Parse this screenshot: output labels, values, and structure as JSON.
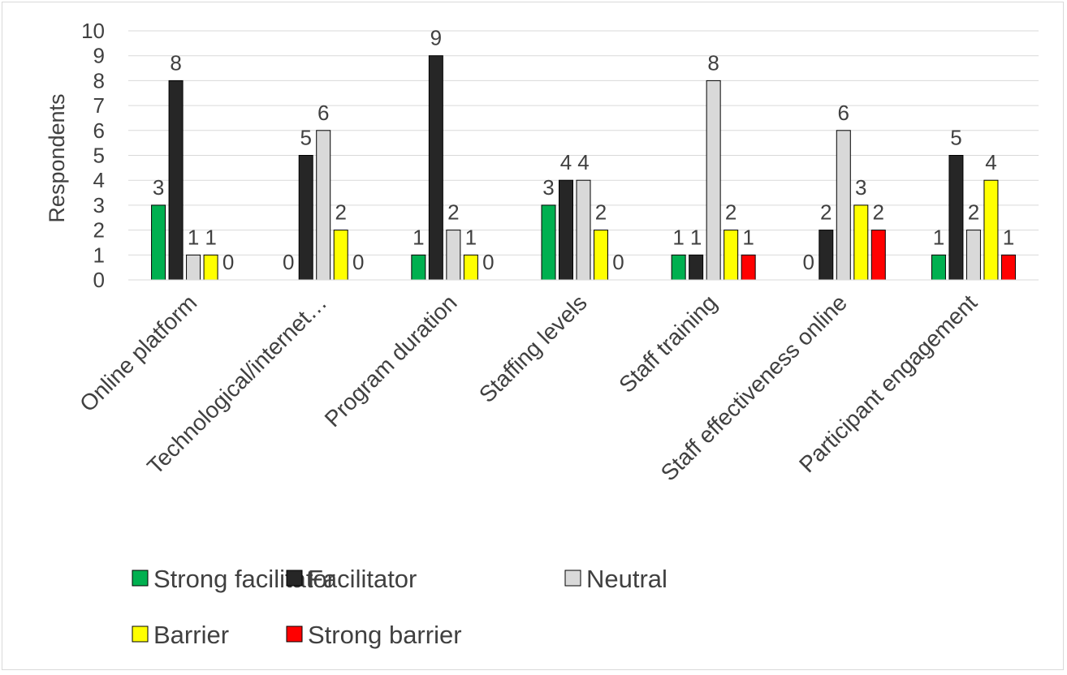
{
  "chart_data": {
    "type": "bar",
    "title": "",
    "xlabel": "",
    "ylabel": "Respondents",
    "ylim": [
      0,
      10
    ],
    "yticks": [
      "0",
      "1",
      "2",
      "3",
      "4",
      "5",
      "6",
      "7",
      "8",
      "9",
      "10"
    ],
    "grid": true,
    "legend_position": "bottom",
    "categories": [
      "Online platform",
      "Technological/internet…",
      "Program duration",
      "Staffing levels",
      "Staff training",
      "Staff effectiveness online",
      "Participant engagement"
    ],
    "series": [
      {
        "name": "Strong facilitator",
        "color": "#00b050",
        "values": [
          3,
          0,
          1,
          3,
          1,
          0,
          1
        ]
      },
      {
        "name": "Facilitator",
        "color": "#262626",
        "values": [
          8,
          5,
          9,
          4,
          1,
          2,
          5
        ]
      },
      {
        "name": "Neutral",
        "color": "#d9d9d9",
        "values": [
          1,
          6,
          2,
          4,
          8,
          6,
          2
        ]
      },
      {
        "name": "Barrier",
        "color": "#ffff00",
        "values": [
          1,
          2,
          1,
          2,
          2,
          3,
          4
        ]
      },
      {
        "name": "Strong barrier",
        "color": "#ff0000",
        "values": [
          0,
          0,
          0,
          0,
          1,
          2,
          1
        ]
      }
    ]
  }
}
